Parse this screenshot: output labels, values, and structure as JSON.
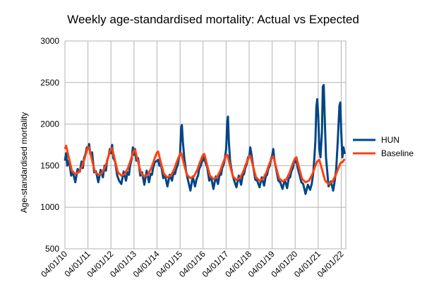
{
  "chart_data": {
    "type": "line",
    "title": "Weekly age-standardised mortality: Actual vs Expected",
    "xlabel": "",
    "ylabel": "Age-standardised mortality",
    "ylim": [
      500,
      3000
    ],
    "yticks": [
      500,
      1000,
      1500,
      2000,
      2500,
      3000
    ],
    "xticks": [
      "04/01/10",
      "04/01/11",
      "04/01/12",
      "04/01/13",
      "04/01/14",
      "04/01/15",
      "04/01/16",
      "04/01/17",
      "04/01/18",
      "04/01/19",
      "04/01/20",
      "04/01/21",
      "04/01/22"
    ],
    "grid": true,
    "legend_position": "right",
    "series": [
      {
        "name": "HUN",
        "color": "#004586",
        "points": [
          [
            2010.0,
            1560
          ],
          [
            2010.05,
            1650
          ],
          [
            2010.1,
            1500
          ],
          [
            2010.18,
            1570
          ],
          [
            2010.27,
            1380
          ],
          [
            2010.35,
            1420
          ],
          [
            2010.45,
            1300
          ],
          [
            2010.55,
            1460
          ],
          [
            2010.65,
            1430
          ],
          [
            2010.72,
            1550
          ],
          [
            2010.78,
            1470
          ],
          [
            2010.83,
            1590
          ],
          [
            2010.9,
            1650
          ],
          [
            2010.95,
            1720
          ],
          [
            2011.0,
            1700
          ],
          [
            2011.05,
            1760
          ],
          [
            2011.1,
            1640
          ],
          [
            2011.18,
            1660
          ],
          [
            2011.27,
            1420
          ],
          [
            2011.35,
            1430
          ],
          [
            2011.45,
            1300
          ],
          [
            2011.55,
            1450
          ],
          [
            2011.65,
            1360
          ],
          [
            2011.72,
            1500
          ],
          [
            2011.78,
            1440
          ],
          [
            2011.83,
            1560
          ],
          [
            2011.9,
            1620
          ],
          [
            2011.95,
            1700
          ],
          [
            2012.0,
            1650
          ],
          [
            2012.05,
            1750
          ],
          [
            2012.1,
            1590
          ],
          [
            2012.18,
            1550
          ],
          [
            2012.27,
            1380
          ],
          [
            2012.35,
            1320
          ],
          [
            2012.45,
            1280
          ],
          [
            2012.55,
            1430
          ],
          [
            2012.65,
            1320
          ],
          [
            2012.72,
            1420
          ],
          [
            2012.78,
            1390
          ],
          [
            2012.83,
            1500
          ],
          [
            2012.9,
            1580
          ],
          [
            2012.95,
            1720
          ],
          [
            2013.0,
            1630
          ],
          [
            2013.05,
            1700
          ],
          [
            2013.1,
            1560
          ],
          [
            2013.18,
            1590
          ],
          [
            2013.27,
            1380
          ],
          [
            2013.35,
            1420
          ],
          [
            2013.45,
            1270
          ],
          [
            2013.55,
            1440
          ],
          [
            2013.65,
            1300
          ],
          [
            2013.72,
            1400
          ],
          [
            2013.78,
            1390
          ],
          [
            2013.83,
            1470
          ],
          [
            2013.9,
            1540
          ],
          [
            2013.95,
            1550
          ],
          [
            2014.0,
            1560
          ],
          [
            2014.05,
            1570
          ],
          [
            2014.1,
            1500
          ],
          [
            2014.18,
            1500
          ],
          [
            2014.27,
            1350
          ],
          [
            2014.35,
            1380
          ],
          [
            2014.45,
            1250
          ],
          [
            2014.55,
            1390
          ],
          [
            2014.65,
            1320
          ],
          [
            2014.72,
            1420
          ],
          [
            2014.78,
            1400
          ],
          [
            2014.83,
            1460
          ],
          [
            2014.9,
            1510
          ],
          [
            2014.95,
            1600
          ],
          [
            2015.0,
            1640
          ],
          [
            2015.05,
            1960
          ],
          [
            2015.08,
            1990
          ],
          [
            2015.12,
            1800
          ],
          [
            2015.18,
            1600
          ],
          [
            2015.27,
            1420
          ],
          [
            2015.35,
            1320
          ],
          [
            2015.45,
            1200
          ],
          [
            2015.55,
            1370
          ],
          [
            2015.65,
            1250
          ],
          [
            2015.72,
            1340
          ],
          [
            2015.78,
            1380
          ],
          [
            2015.83,
            1460
          ],
          [
            2015.9,
            1500
          ],
          [
            2015.95,
            1560
          ],
          [
            2016.0,
            1560
          ],
          [
            2016.05,
            1620
          ],
          [
            2016.1,
            1540
          ],
          [
            2016.18,
            1480
          ],
          [
            2016.27,
            1320
          ],
          [
            2016.35,
            1360
          ],
          [
            2016.45,
            1220
          ],
          [
            2016.55,
            1370
          ],
          [
            2016.65,
            1280
          ],
          [
            2016.72,
            1400
          ],
          [
            2016.78,
            1390
          ],
          [
            2016.83,
            1470
          ],
          [
            2016.9,
            1520
          ],
          [
            2016.95,
            1590
          ],
          [
            2017.0,
            1700
          ],
          [
            2017.05,
            2020
          ],
          [
            2017.08,
            2090
          ],
          [
            2017.12,
            1780
          ],
          [
            2017.18,
            1540
          ],
          [
            2017.27,
            1400
          ],
          [
            2017.35,
            1320
          ],
          [
            2017.45,
            1240
          ],
          [
            2017.55,
            1380
          ],
          [
            2017.65,
            1270
          ],
          [
            2017.72,
            1380
          ],
          [
            2017.78,
            1400
          ],
          [
            2017.83,
            1470
          ],
          [
            2017.9,
            1520
          ],
          [
            2017.95,
            1600
          ],
          [
            2018.0,
            1600
          ],
          [
            2018.05,
            1720
          ],
          [
            2018.1,
            1640
          ],
          [
            2018.18,
            1480
          ],
          [
            2018.27,
            1330
          ],
          [
            2018.35,
            1320
          ],
          [
            2018.45,
            1240
          ],
          [
            2018.55,
            1360
          ],
          [
            2018.65,
            1260
          ],
          [
            2018.72,
            1370
          ],
          [
            2018.78,
            1390
          ],
          [
            2018.83,
            1460
          ],
          [
            2018.9,
            1500
          ],
          [
            2018.95,
            1580
          ],
          [
            2019.0,
            1620
          ],
          [
            2019.05,
            1700
          ],
          [
            2019.1,
            1560
          ],
          [
            2019.18,
            1450
          ],
          [
            2019.27,
            1320
          ],
          [
            2019.35,
            1300
          ],
          [
            2019.45,
            1220
          ],
          [
            2019.55,
            1330
          ],
          [
            2019.65,
            1230
          ],
          [
            2019.72,
            1350
          ],
          [
            2019.78,
            1360
          ],
          [
            2019.83,
            1430
          ],
          [
            2019.9,
            1470
          ],
          [
            2019.95,
            1560
          ],
          [
            2020.0,
            1540
          ],
          [
            2020.05,
            1600
          ],
          [
            2020.1,
            1480
          ],
          [
            2020.18,
            1400
          ],
          [
            2020.27,
            1300
          ],
          [
            2020.35,
            1280
          ],
          [
            2020.45,
            1160
          ],
          [
            2020.55,
            1270
          ],
          [
            2020.65,
            1210
          ],
          [
            2020.72,
            1280
          ],
          [
            2020.78,
            1400
          ],
          [
            2020.83,
            1580
          ],
          [
            2020.88,
            1800
          ],
          [
            2020.92,
            2200
          ],
          [
            2020.96,
            2300
          ],
          [
            2021.0,
            2100
          ],
          [
            2021.05,
            1700
          ],
          [
            2021.1,
            1600
          ],
          [
            2021.16,
            1900
          ],
          [
            2021.2,
            2450
          ],
          [
            2021.24,
            2470
          ],
          [
            2021.28,
            2100
          ],
          [
            2021.34,
            1600
          ],
          [
            2021.45,
            1250
          ],
          [
            2021.55,
            1310
          ],
          [
            2021.65,
            1200
          ],
          [
            2021.72,
            1320
          ],
          [
            2021.78,
            1450
          ],
          [
            2021.85,
            1800
          ],
          [
            2021.92,
            2220
          ],
          [
            2021.96,
            2260
          ],
          [
            2022.0,
            1900
          ],
          [
            2022.05,
            1600
          ],
          [
            2022.1,
            1720
          ],
          [
            2022.15,
            1640
          ]
        ]
      },
      {
        "name": "Baseline",
        "color": "#ff420e",
        "points": [
          [
            2010.0,
            1700
          ],
          [
            2010.05,
            1740
          ],
          [
            2010.1,
            1680
          ],
          [
            2010.2,
            1560
          ],
          [
            2010.3,
            1440
          ],
          [
            2010.45,
            1400
          ],
          [
            2010.6,
            1420
          ],
          [
            2010.75,
            1500
          ],
          [
            2010.85,
            1580
          ],
          [
            2010.95,
            1680
          ],
          [
            2011.0,
            1720
          ],
          [
            2011.05,
            1720
          ],
          [
            2011.1,
            1660
          ],
          [
            2011.2,
            1540
          ],
          [
            2011.3,
            1430
          ],
          [
            2011.45,
            1390
          ],
          [
            2011.6,
            1410
          ],
          [
            2011.75,
            1490
          ],
          [
            2011.85,
            1570
          ],
          [
            2011.95,
            1670
          ],
          [
            2012.0,
            1700
          ],
          [
            2012.05,
            1710
          ],
          [
            2012.1,
            1650
          ],
          [
            2012.2,
            1530
          ],
          [
            2012.3,
            1420
          ],
          [
            2012.45,
            1380
          ],
          [
            2012.6,
            1400
          ],
          [
            2012.75,
            1480
          ],
          [
            2012.85,
            1560
          ],
          [
            2012.95,
            1650
          ],
          [
            2013.0,
            1680
          ],
          [
            2013.05,
            1690
          ],
          [
            2013.1,
            1630
          ],
          [
            2013.2,
            1520
          ],
          [
            2013.3,
            1410
          ],
          [
            2013.45,
            1370
          ],
          [
            2013.6,
            1390
          ],
          [
            2013.75,
            1470
          ],
          [
            2013.85,
            1550
          ],
          [
            2013.95,
            1630
          ],
          [
            2014.0,
            1660
          ],
          [
            2014.05,
            1670
          ],
          [
            2014.1,
            1610
          ],
          [
            2014.2,
            1500
          ],
          [
            2014.3,
            1400
          ],
          [
            2014.45,
            1360
          ],
          [
            2014.6,
            1380
          ],
          [
            2014.75,
            1460
          ],
          [
            2014.85,
            1540
          ],
          [
            2014.95,
            1610
          ],
          [
            2015.0,
            1640
          ],
          [
            2015.05,
            1650
          ],
          [
            2015.1,
            1600
          ],
          [
            2015.2,
            1490
          ],
          [
            2015.3,
            1390
          ],
          [
            2015.45,
            1350
          ],
          [
            2015.6,
            1370
          ],
          [
            2015.75,
            1450
          ],
          [
            2015.85,
            1530
          ],
          [
            2015.95,
            1600
          ],
          [
            2016.0,
            1630
          ],
          [
            2016.05,
            1640
          ],
          [
            2016.1,
            1590
          ],
          [
            2016.2,
            1480
          ],
          [
            2016.3,
            1380
          ],
          [
            2016.45,
            1340
          ],
          [
            2016.6,
            1360
          ],
          [
            2016.75,
            1440
          ],
          [
            2016.85,
            1520
          ],
          [
            2016.95,
            1590
          ],
          [
            2017.0,
            1620
          ],
          [
            2017.05,
            1630
          ],
          [
            2017.1,
            1580
          ],
          [
            2017.2,
            1470
          ],
          [
            2017.3,
            1370
          ],
          [
            2017.45,
            1330
          ],
          [
            2017.6,
            1350
          ],
          [
            2017.75,
            1430
          ],
          [
            2017.85,
            1510
          ],
          [
            2017.95,
            1580
          ],
          [
            2018.0,
            1610
          ],
          [
            2018.05,
            1620
          ],
          [
            2018.1,
            1570
          ],
          [
            2018.2,
            1460
          ],
          [
            2018.3,
            1360
          ],
          [
            2018.45,
            1320
          ],
          [
            2018.6,
            1340
          ],
          [
            2018.75,
            1420
          ],
          [
            2018.85,
            1500
          ],
          [
            2018.95,
            1570
          ],
          [
            2019.0,
            1600
          ],
          [
            2019.05,
            1610
          ],
          [
            2019.1,
            1560
          ],
          [
            2019.2,
            1450
          ],
          [
            2019.3,
            1350
          ],
          [
            2019.45,
            1310
          ],
          [
            2019.6,
            1330
          ],
          [
            2019.75,
            1410
          ],
          [
            2019.85,
            1490
          ],
          [
            2019.95,
            1560
          ],
          [
            2020.0,
            1590
          ],
          [
            2020.05,
            1600
          ],
          [
            2020.1,
            1550
          ],
          [
            2020.2,
            1440
          ],
          [
            2020.3,
            1340
          ],
          [
            2020.45,
            1300
          ],
          [
            2020.6,
            1320
          ],
          [
            2020.75,
            1400
          ],
          [
            2020.85,
            1480
          ],
          [
            2020.95,
            1550
          ],
          [
            2021.0,
            1560
          ],
          [
            2021.05,
            1570
          ],
          [
            2021.1,
            1520
          ],
          [
            2021.2,
            1420
          ],
          [
            2021.3,
            1320
          ],
          [
            2021.45,
            1280
          ],
          [
            2021.6,
            1300
          ],
          [
            2021.75,
            1380
          ],
          [
            2021.85,
            1450
          ],
          [
            2021.95,
            1520
          ],
          [
            2022.0,
            1540
          ],
          [
            2022.05,
            1540
          ],
          [
            2022.1,
            1560
          ],
          [
            2022.15,
            1580
          ]
        ]
      }
    ]
  }
}
